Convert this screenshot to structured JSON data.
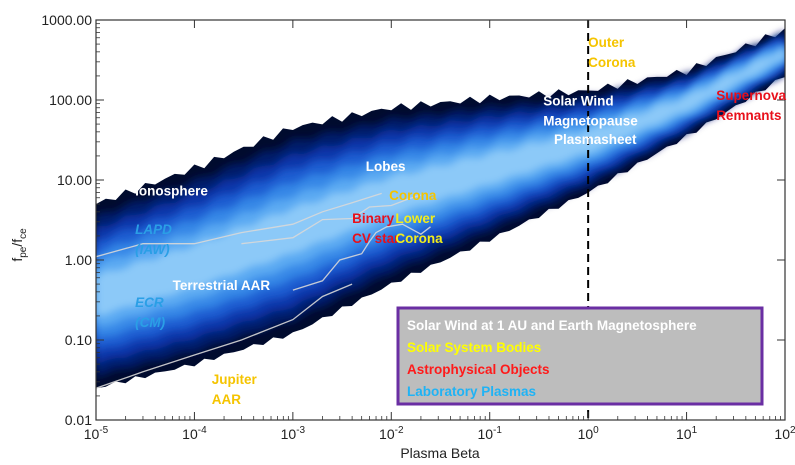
{
  "chart_data": {
    "type": "heatmap",
    "title": "",
    "xlabel": "Plasma Beta",
    "ylabel": "fpe/fce",
    "ylabel_main": "f",
    "ylabel_sub1": "pe",
    "ylabel_mid": "/f",
    "ylabel_sub2": "ce",
    "x_scale": "log",
    "y_scale": "log",
    "xlim": [
      1e-05,
      100
    ],
    "ylim": [
      0.01,
      1000
    ],
    "x_ticks": [
      {
        "value": 1e-05,
        "base": "10",
        "exp": "-5"
      },
      {
        "value": 0.0001,
        "base": "10",
        "exp": "-4"
      },
      {
        "value": 0.001,
        "base": "10",
        "exp": "-3"
      },
      {
        "value": 0.01,
        "base": "10",
        "exp": "-2"
      },
      {
        "value": 0.1,
        "base": "10",
        "exp": "-1"
      },
      {
        "value": 1,
        "base": "10",
        "exp": "0"
      },
      {
        "value": 10,
        "base": "10",
        "exp": "1"
      },
      {
        "value": 100,
        "base": "10",
        "exp": "2"
      }
    ],
    "y_ticks": [
      {
        "value": 0.01,
        "label": "0.01"
      },
      {
        "value": 0.1,
        "label": "0.10"
      },
      {
        "value": 1,
        "label": "1.00"
      },
      {
        "value": 10,
        "label": "10.00"
      },
      {
        "value": 100,
        "label": "100.00"
      },
      {
        "value": 1000,
        "label": "1000.00"
      }
    ],
    "reference_line": {
      "x": 1,
      "style": "dashed"
    },
    "density_colors": [
      "#000b2e",
      "#001c6b",
      "#0836a8",
      "#1a5bd0",
      "#3486e6",
      "#5aa9f2",
      "#8cc9f8"
    ],
    "density_region": {
      "upper_edge": [
        [
          1e-05,
          5
        ],
        [
          0.0001,
          14
        ],
        [
          0.001,
          45
        ],
        [
          0.01,
          80
        ],
        [
          0.1,
          105
        ],
        [
          1,
          130
        ],
        [
          10,
          230
        ],
        [
          100,
          750
        ]
      ],
      "lower_edge": [
        [
          1e-05,
          0.025
        ],
        [
          0.0001,
          0.05
        ],
        [
          0.001,
          0.12
        ],
        [
          0.01,
          0.5
        ],
        [
          0.1,
          1.8
        ],
        [
          1,
          7
        ],
        [
          10,
          35
        ],
        [
          100,
          200
        ]
      ]
    },
    "annotations": [
      {
        "lines": [
          "Outer",
          "Corona"
        ],
        "x": 1.0,
        "y": 460,
        "category": "solar_system"
      },
      {
        "lines": [
          "Supernova",
          "Remnants"
        ],
        "x": 20,
        "y": 100,
        "category": "astrophysical"
      },
      {
        "lines": [
          "Solar Wind",
          "Magnetopause"
        ],
        "x": 0.35,
        "y": 85,
        "category": "solar_wind"
      },
      {
        "lines": [
          "Plasmasheet"
        ],
        "x": 0.45,
        "y": 28,
        "category": "solar_wind"
      },
      {
        "lines": [
          "Lobes"
        ],
        "x": 0.0055,
        "y": 13,
        "category": "solar_wind"
      },
      {
        "lines": [
          "Corona"
        ],
        "x": 0.0095,
        "y": 5.6,
        "category": "solar_system"
      },
      {
        "lines": [
          "Ionosphere"
        ],
        "x": 2.5e-05,
        "y": 6.4,
        "category": "solar_wind"
      },
      {
        "lines": [
          "LAPD",
          "(IAW)"
        ],
        "x": 2.5e-05,
        "y": 2.1,
        "category": "laboratory",
        "italic": true
      },
      {
        "lines": [
          "Binary",
          "CV star"
        ],
        "x": 0.004,
        "y": 2.9,
        "category": "astrophysical"
      },
      {
        "lines": [
          "Lower",
          "Corona"
        ],
        "x": 0.011,
        "y": 2.9,
        "category": "solar_system"
      },
      {
        "lines": [
          "Terrestrial AAR"
        ],
        "x": 6e-05,
        "y": 0.42,
        "category": "solar_wind"
      },
      {
        "lines": [
          "ECR",
          "(CM)"
        ],
        "x": 2.5e-05,
        "y": 0.26,
        "category": "laboratory",
        "italic": true
      },
      {
        "lines": [
          "Jupiter",
          "AAR"
        ],
        "x": 0.00015,
        "y": 0.028,
        "category": "solar_system"
      }
    ],
    "legend": {
      "placement": "bottom-right",
      "entries": [
        {
          "label": "Solar Wind at 1 AU and Earth Magnetosphere",
          "category": "solar_wind",
          "color": "#ffffff"
        },
        {
          "label": "Solar System Bodies",
          "category": "solar_system",
          "color": "#ffff00"
        },
        {
          "label": "Astrophysical Objects",
          "category": "astrophysical",
          "color": "#ff1a1a"
        },
        {
          "label": "Laboratory Plasmas",
          "category": "laboratory",
          "color": "#1fb3f5"
        }
      ],
      "background": "#bdbdbd",
      "border": "#6a2ea3"
    },
    "category_colors": {
      "solar_wind": "#ffffff",
      "solar_system": "#f5c400",
      "astrophysical": "#e8101b",
      "laboratory": "#2a9fe6"
    },
    "lower_corona_color": "#f3ee1a",
    "outline_color": "#d8d8d8"
  }
}
